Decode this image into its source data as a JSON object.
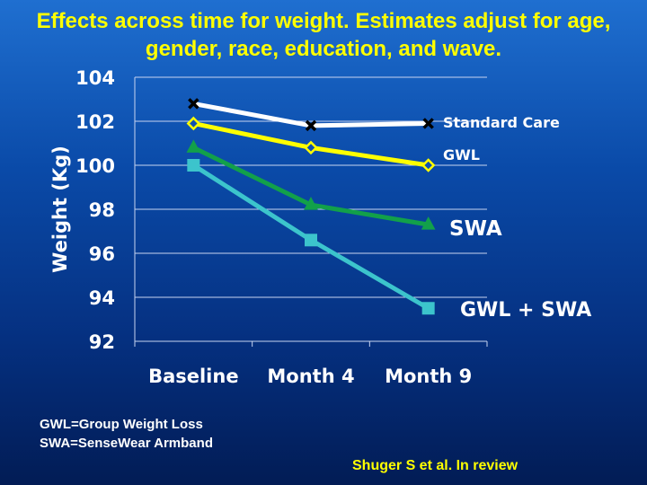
{
  "chart_data": {
    "type": "line",
    "title": "Effects across time for weight. Estimates adjust for age, gender, race, education, and wave.",
    "xlabel": "",
    "ylabel": "Weight (Kg)",
    "ylim": [
      92,
      104
    ],
    "yticks": [
      92,
      94,
      96,
      98,
      100,
      102,
      104
    ],
    "grid": true,
    "categories": [
      "Baseline",
      "Month 4",
      "Month 9"
    ],
    "series": [
      {
        "name": "Standard Care",
        "values": [
          102.8,
          101.8,
          101.9
        ],
        "color": "#ffffff",
        "marker": "x"
      },
      {
        "name": "GWL",
        "values": [
          101.9,
          100.8,
          100.0
        ],
        "color": "#ffff00",
        "marker": "diamond"
      },
      {
        "name": "SWA",
        "values": [
          100.8,
          98.2,
          97.3
        ],
        "color": "#12a04a",
        "marker": "triangle"
      },
      {
        "name": "GWL + SWA",
        "values": [
          100.0,
          96.6,
          93.5
        ],
        "color": "#3cc4cc",
        "marker": "square"
      }
    ]
  },
  "notes": [
    "GWL=Group Weight Loss",
    "SWA=SenseWear Armband"
  ],
  "citation": "Shuger S et al. In review"
}
